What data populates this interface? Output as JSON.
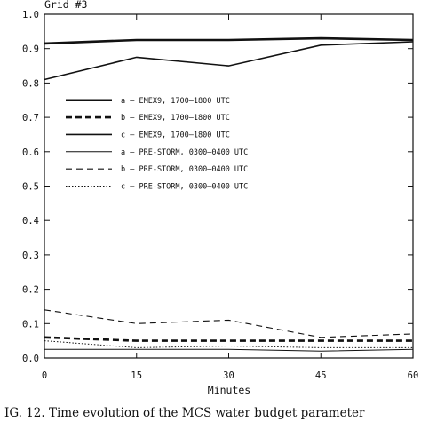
{
  "chart_data": {
    "type": "line",
    "title": "Grid #3",
    "xlabel": "Minutes",
    "ylabel": "",
    "xlim": [
      0,
      60
    ],
    "ylim": [
      0,
      1.0
    ],
    "xticks": [
      0,
      15,
      30,
      45,
      60
    ],
    "yticks": [
      0.0,
      0.1,
      0.2,
      0.3,
      0.4,
      0.5,
      0.6,
      0.7,
      0.8,
      0.9,
      1.0
    ],
    "grid": false,
    "legend_position": "center-left",
    "x": [
      0,
      15,
      30,
      45,
      60
    ],
    "series": [
      {
        "name": "a – EMEX9, 1700–1800 UTC",
        "style": "solid-thick",
        "values": [
          0.915,
          0.925,
          0.925,
          0.93,
          0.925
        ]
      },
      {
        "name": "b – EMEX9, 1700–1800 UTC",
        "style": "dashed-thick",
        "values": [
          0.06,
          0.05,
          0.05,
          0.05,
          0.05
        ]
      },
      {
        "name": "c – EMEX9, 1700–1800 UTC",
        "style": "solid-medium",
        "values": [
          0.81,
          0.875,
          0.85,
          0.91,
          0.92
        ]
      },
      {
        "name": "a – PRE-STORM, 0300–0400 UTC",
        "style": "solid-thin",
        "values": [
          0.025,
          0.025,
          0.025,
          0.02,
          0.025
        ]
      },
      {
        "name": "b – PRE-STORM, 0300–0400 UTC",
        "style": "dashed-thin",
        "values": [
          0.14,
          0.1,
          0.11,
          0.06,
          0.07
        ]
      },
      {
        "name": "c – PRE-STORM, 0300–0400 UTC",
        "style": "dotted-thin",
        "values": [
          0.05,
          0.03,
          0.035,
          0.03,
          0.03
        ]
      }
    ]
  },
  "caption": "IG. 12. Time evolution of the MCS water budget parameter"
}
